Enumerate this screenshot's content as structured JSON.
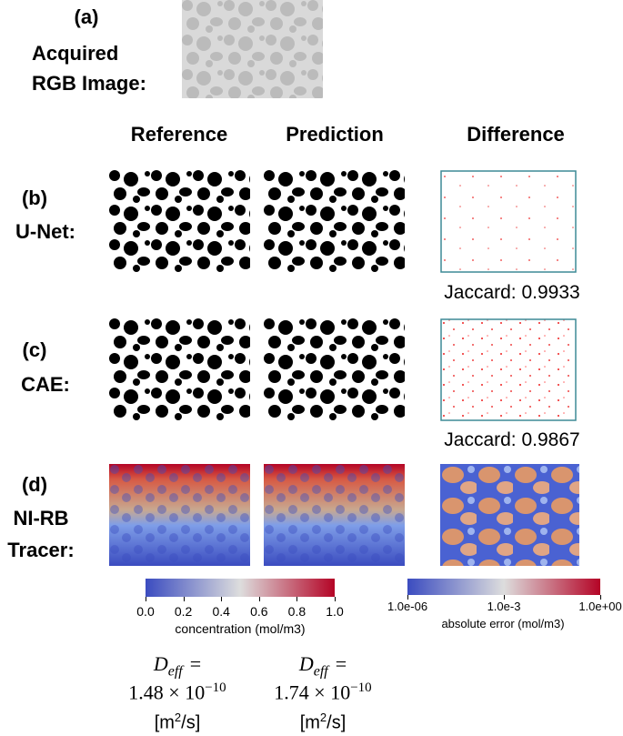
{
  "panel_a": {
    "label": "(a)",
    "caption_line1": "Acquired",
    "caption_line2": "RGB Image:"
  },
  "columns": [
    "Reference",
    "Prediction",
    "Difference"
  ],
  "rows": [
    {
      "label": "(b)",
      "name_line1": "U-Net:",
      "jaccard": "Jaccard: 0.9933"
    },
    {
      "label": "(c)",
      "name_line1": "CAE:",
      "jaccard": "Jaccard: 0.9867"
    },
    {
      "label": "(d)",
      "name_line1": "NI-RB",
      "name_line2": "Tracer:"
    }
  ],
  "concentration_colorbar": {
    "label": "concentration (mol/m3)",
    "lim": [
      0,
      1
    ],
    "ticks": [
      {
        "value": 0,
        "label": "0.0"
      },
      {
        "value": 0.2,
        "label": "0.2"
      },
      {
        "value": 0.4,
        "label": "0.4"
      },
      {
        "value": 0.6,
        "label": "0.6"
      },
      {
        "value": 0.8,
        "label": "0.8"
      },
      {
        "value": 1,
        "label": "1.0"
      }
    ]
  },
  "error_colorbar": {
    "label": "absolute error (mol/m3)",
    "lim": [
      1e-06,
      1
    ],
    "log": true,
    "ticks": [
      {
        "value": 1e-06,
        "label": "1.0e-06"
      },
      {
        "value": 0.001,
        "label": "1.0e-3"
      },
      {
        "value": 1,
        "label": "1.0e+00"
      }
    ]
  },
  "deff": [
    {
      "symbol": "D",
      "subscript": "eff",
      "equals": "=",
      "value": "1.48 × 10",
      "exponent": "−10",
      "unit_base": "[m",
      "unit_exponent": "2",
      "unit_rest": "/s]"
    },
    {
      "symbol": "D",
      "subscript": "eff",
      "equals": "=",
      "value": "1.74 × 10",
      "exponent": "−10",
      "unit_base": "[m",
      "unit_exponent": "2",
      "unit_rest": "/s]"
    }
  ]
}
